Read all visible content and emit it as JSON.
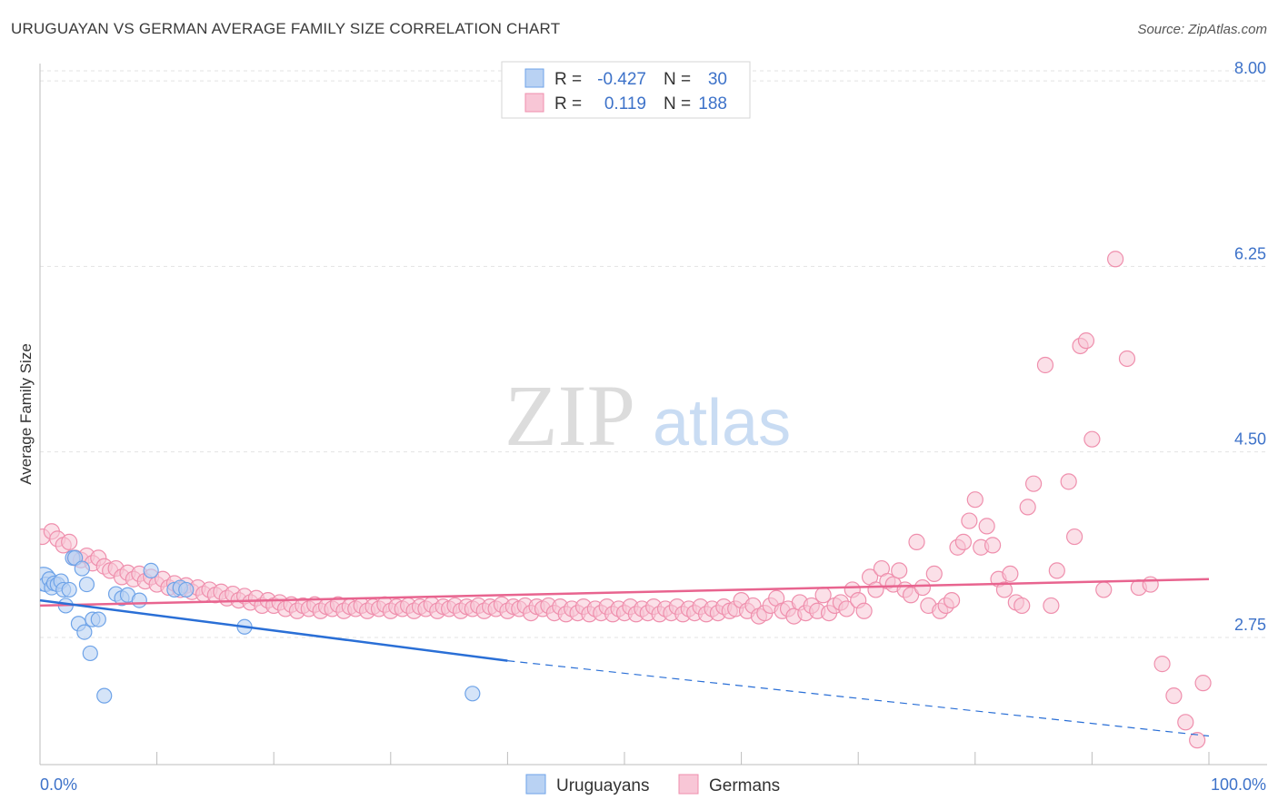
{
  "header": {
    "title": "URUGUAYAN VS GERMAN AVERAGE FAMILY SIZE CORRELATION CHART",
    "source": "Source: ZipAtlas.com"
  },
  "watermark": {
    "zip": "ZIP",
    "atlas": "atlas"
  },
  "colors": {
    "uruguayans": "#6ea3e8",
    "uruguayans_fill": "#b9d2f3",
    "uruguayans_line": "#2a6fd6",
    "germans": "#ef8fad",
    "germans_fill": "#f8c6d6",
    "germans_line": "#e8648f",
    "tick_text": "#3d72c9"
  },
  "legend": {
    "rows": [
      {
        "r_label": "R =",
        "r_value": "-0.427",
        "n_label": "N =",
        "n_value": "30"
      },
      {
        "r_label": "R =",
        "r_value": "0.119",
        "n_label": "N =",
        "n_value": "188"
      }
    ]
  },
  "bottom_legend": {
    "items": [
      "Uruguayans",
      "Germans"
    ]
  },
  "chart_data": {
    "type": "scatter",
    "title": "URUGUAYAN VS GERMAN AVERAGE FAMILY SIZE CORRELATION CHART",
    "xlabel": "",
    "ylabel": "Average Family Size",
    "xlim": [
      0,
      100
    ],
    "ylim": [
      1.55,
      8.25
    ],
    "x_tick_labels": [
      "0.0%",
      "100.0%"
    ],
    "y_ticks": [
      {
        "value": 2.75,
        "label": "2.75"
      },
      {
        "value": 4.5,
        "label": "4.50"
      },
      {
        "value": 6.25,
        "label": "6.25"
      },
      {
        "value": 8.0,
        "label": "8.00"
      }
    ],
    "grid": true,
    "series": [
      {
        "name": "Uruguayans",
        "r": -0.427,
        "n": 30,
        "trend": {
          "x0": 0,
          "y0": 3.1,
          "x1": 40,
          "y1": 2.53,
          "dash_to_x": 100,
          "dash_to_y": 1.82
        },
        "points": [
          [
            0.3,
            3.3
          ],
          [
            0.5,
            3.25
          ],
          [
            0.8,
            3.3
          ],
          [
            1.0,
            3.22
          ],
          [
            1.2,
            3.26
          ],
          [
            1.5,
            3.25
          ],
          [
            1.8,
            3.28
          ],
          [
            2.0,
            3.2
          ],
          [
            2.2,
            3.05
          ],
          [
            2.5,
            3.2
          ],
          [
            2.8,
            3.5
          ],
          [
            3.0,
            3.5
          ],
          [
            3.3,
            2.88
          ],
          [
            3.6,
            3.4
          ],
          [
            3.8,
            2.8
          ],
          [
            4.0,
            3.25
          ],
          [
            4.3,
            2.6
          ],
          [
            4.5,
            2.92
          ],
          [
            5.0,
            2.92
          ],
          [
            5.5,
            2.2
          ],
          [
            6.5,
            3.16
          ],
          [
            7.0,
            3.12
          ],
          [
            7.5,
            3.15
          ],
          [
            8.5,
            3.1
          ],
          [
            9.5,
            3.38
          ],
          [
            11.5,
            3.2
          ],
          [
            12.0,
            3.22
          ],
          [
            12.5,
            3.2
          ],
          [
            17.5,
            2.85
          ],
          [
            37.0,
            2.22
          ]
        ]
      },
      {
        "name": "Germans",
        "r": 0.119,
        "n": 188,
        "trend": {
          "x0": 0,
          "y0": 3.05,
          "x1": 100,
          "y1": 3.3
        },
        "points": [
          [
            0.2,
            3.7
          ],
          [
            1.0,
            3.75
          ],
          [
            1.5,
            3.68
          ],
          [
            2.0,
            3.62
          ],
          [
            2.5,
            3.65
          ],
          [
            3.0,
            3.5
          ],
          [
            3.5,
            3.48
          ],
          [
            4.0,
            3.52
          ],
          [
            4.5,
            3.45
          ],
          [
            5.0,
            3.5
          ],
          [
            5.5,
            3.42
          ],
          [
            6.0,
            3.38
          ],
          [
            6.5,
            3.4
          ],
          [
            7.0,
            3.32
          ],
          [
            7.5,
            3.36
          ],
          [
            8.0,
            3.3
          ],
          [
            8.5,
            3.35
          ],
          [
            9.0,
            3.28
          ],
          [
            9.5,
            3.32
          ],
          [
            10.0,
            3.25
          ],
          [
            10.5,
            3.3
          ],
          [
            11.0,
            3.22
          ],
          [
            11.5,
            3.26
          ],
          [
            12.0,
            3.2
          ],
          [
            12.5,
            3.24
          ],
          [
            13.0,
            3.18
          ],
          [
            13.5,
            3.22
          ],
          [
            14.0,
            3.16
          ],
          [
            14.5,
            3.2
          ],
          [
            15.0,
            3.15
          ],
          [
            15.5,
            3.18
          ],
          [
            16.0,
            3.12
          ],
          [
            16.5,
            3.16
          ],
          [
            17.0,
            3.1
          ],
          [
            17.5,
            3.14
          ],
          [
            18.0,
            3.08
          ],
          [
            18.5,
            3.12
          ],
          [
            19.0,
            3.05
          ],
          [
            19.5,
            3.1
          ],
          [
            20.0,
            3.05
          ],
          [
            20.5,
            3.08
          ],
          [
            21.0,
            3.02
          ],
          [
            21.5,
            3.06
          ],
          [
            22.0,
            3.0
          ],
          [
            22.5,
            3.05
          ],
          [
            23.0,
            3.02
          ],
          [
            23.5,
            3.06
          ],
          [
            24.0,
            3.0
          ],
          [
            24.5,
            3.04
          ],
          [
            25.0,
            3.02
          ],
          [
            25.5,
            3.06
          ],
          [
            26.0,
            3.0
          ],
          [
            26.5,
            3.04
          ],
          [
            27.0,
            3.02
          ],
          [
            27.5,
            3.05
          ],
          [
            28.0,
            3.0
          ],
          [
            28.5,
            3.04
          ],
          [
            29.0,
            3.02
          ],
          [
            29.5,
            3.06
          ],
          [
            30.0,
            3.0
          ],
          [
            30.5,
            3.04
          ],
          [
            31.0,
            3.02
          ],
          [
            31.5,
            3.05
          ],
          [
            32.0,
            3.0
          ],
          [
            32.5,
            3.04
          ],
          [
            33.0,
            3.02
          ],
          [
            33.5,
            3.06
          ],
          [
            34.0,
            3.0
          ],
          [
            34.5,
            3.04
          ],
          [
            35.0,
            3.02
          ],
          [
            35.5,
            3.05
          ],
          [
            36.0,
            3.0
          ],
          [
            36.5,
            3.04
          ],
          [
            37.0,
            3.02
          ],
          [
            37.5,
            3.05
          ],
          [
            38.0,
            3.0
          ],
          [
            38.5,
            3.04
          ],
          [
            39.0,
            3.02
          ],
          [
            39.5,
            3.06
          ],
          [
            40.0,
            3.0
          ],
          [
            40.5,
            3.04
          ],
          [
            41.0,
            3.02
          ],
          [
            41.5,
            3.05
          ],
          [
            42.0,
            2.98
          ],
          [
            42.5,
            3.04
          ],
          [
            43.0,
            3.02
          ],
          [
            43.5,
            3.05
          ],
          [
            44.0,
            2.98
          ],
          [
            44.5,
            3.04
          ],
          [
            45.0,
            2.97
          ],
          [
            45.5,
            3.02
          ],
          [
            46.0,
            2.98
          ],
          [
            46.5,
            3.04
          ],
          [
            47.0,
            2.97
          ],
          [
            47.5,
            3.02
          ],
          [
            48.0,
            2.98
          ],
          [
            48.5,
            3.04
          ],
          [
            49.0,
            2.97
          ],
          [
            49.5,
            3.02
          ],
          [
            50.0,
            2.98
          ],
          [
            50.5,
            3.04
          ],
          [
            51.0,
            2.97
          ],
          [
            51.5,
            3.02
          ],
          [
            52.0,
            2.98
          ],
          [
            52.5,
            3.04
          ],
          [
            53.0,
            2.97
          ],
          [
            53.5,
            3.02
          ],
          [
            54.0,
            2.98
          ],
          [
            54.5,
            3.04
          ],
          [
            55.0,
            2.97
          ],
          [
            55.5,
            3.02
          ],
          [
            56.0,
            2.98
          ],
          [
            56.5,
            3.04
          ],
          [
            57.0,
            2.97
          ],
          [
            57.5,
            3.02
          ],
          [
            58.0,
            2.98
          ],
          [
            58.5,
            3.04
          ],
          [
            59.0,
            3.0
          ],
          [
            59.5,
            3.02
          ],
          [
            60.0,
            3.1
          ],
          [
            60.5,
            3.0
          ],
          [
            61.0,
            3.05
          ],
          [
            61.5,
            2.95
          ],
          [
            62.0,
            2.98
          ],
          [
            62.5,
            3.05
          ],
          [
            63.0,
            3.12
          ],
          [
            63.5,
            3.0
          ],
          [
            64.0,
            3.02
          ],
          [
            64.5,
            2.95
          ],
          [
            65.0,
            3.08
          ],
          [
            65.5,
            2.98
          ],
          [
            66.0,
            3.05
          ],
          [
            66.5,
            3.0
          ],
          [
            67.0,
            3.15
          ],
          [
            67.5,
            2.98
          ],
          [
            68.0,
            3.05
          ],
          [
            68.5,
            3.08
          ],
          [
            69.0,
            3.02
          ],
          [
            69.5,
            3.2
          ],
          [
            70.0,
            3.1
          ],
          [
            70.5,
            3.0
          ],
          [
            71.0,
            3.32
          ],
          [
            71.5,
            3.2
          ],
          [
            72.0,
            3.4
          ],
          [
            72.5,
            3.28
          ],
          [
            73.0,
            3.25
          ],
          [
            73.5,
            3.38
          ],
          [
            74.0,
            3.2
          ],
          [
            74.5,
            3.15
          ],
          [
            75.0,
            3.65
          ],
          [
            75.5,
            3.22
          ],
          [
            76.0,
            3.05
          ],
          [
            76.5,
            3.35
          ],
          [
            77.0,
            3.0
          ],
          [
            77.5,
            3.05
          ],
          [
            78.0,
            3.1
          ],
          [
            78.5,
            3.6
          ],
          [
            79.0,
            3.65
          ],
          [
            79.5,
            3.85
          ],
          [
            80.0,
            4.05
          ],
          [
            80.5,
            3.6
          ],
          [
            81.0,
            3.8
          ],
          [
            81.5,
            3.62
          ],
          [
            82.0,
            3.3
          ],
          [
            82.5,
            3.2
          ],
          [
            83.0,
            3.35
          ],
          [
            83.5,
            3.08
          ],
          [
            84.0,
            3.05
          ],
          [
            84.5,
            3.98
          ],
          [
            85.0,
            4.2
          ],
          [
            86.0,
            5.32
          ],
          [
            86.5,
            3.05
          ],
          [
            87.0,
            3.38
          ],
          [
            88.0,
            4.22
          ],
          [
            88.5,
            3.7
          ],
          [
            89.0,
            5.5
          ],
          [
            89.5,
            5.55
          ],
          [
            90.0,
            4.62
          ],
          [
            91.0,
            3.2
          ],
          [
            92.0,
            6.32
          ],
          [
            93.0,
            5.38
          ],
          [
            94.0,
            3.22
          ],
          [
            95.0,
            3.25
          ],
          [
            96.0,
            2.5
          ],
          [
            97.0,
            2.2
          ],
          [
            98.0,
            1.95
          ],
          [
            99.0,
            1.78
          ],
          [
            99.5,
            2.32
          ]
        ]
      }
    ]
  }
}
